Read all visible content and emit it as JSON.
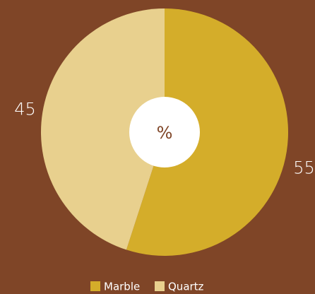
{
  "chart_data": {
    "type": "pie",
    "center_label": "%",
    "categories": [
      "Marble",
      "Quartz"
    ],
    "values": [
      55,
      45
    ],
    "colors": [
      "#d4ad2a",
      "#e8d08e"
    ],
    "legend": "bottom"
  }
}
